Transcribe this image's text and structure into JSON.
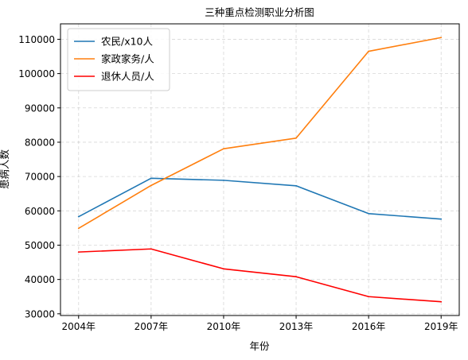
{
  "chart_data": {
    "type": "line",
    "title": "三种重点检测职业分析图",
    "xlabel": "年份",
    "ylabel": "患病人数",
    "categories": [
      "2004年",
      "2007年",
      "2010年",
      "2013年",
      "2016年",
      "2019年"
    ],
    "ylim": [
      29500,
      114500
    ],
    "yticks": [
      30000,
      40000,
      50000,
      60000,
      70000,
      80000,
      90000,
      100000,
      110000
    ],
    "grid": true,
    "legend_position": "top-left",
    "series": [
      {
        "name": "农民/x10人",
        "color": "#1f77b4",
        "values": [
          58300,
          69500,
          68900,
          67300,
          59200,
          57600
        ]
      },
      {
        "name": "家政家务/人",
        "color": "#ff7f0e",
        "values": [
          54900,
          67400,
          78100,
          81200,
          106500,
          110500
        ]
      },
      {
        "name": "退休人员/人",
        "color": "#ff0000",
        "values": [
          48000,
          48900,
          43100,
          40800,
          35000,
          33500
        ]
      }
    ]
  }
}
